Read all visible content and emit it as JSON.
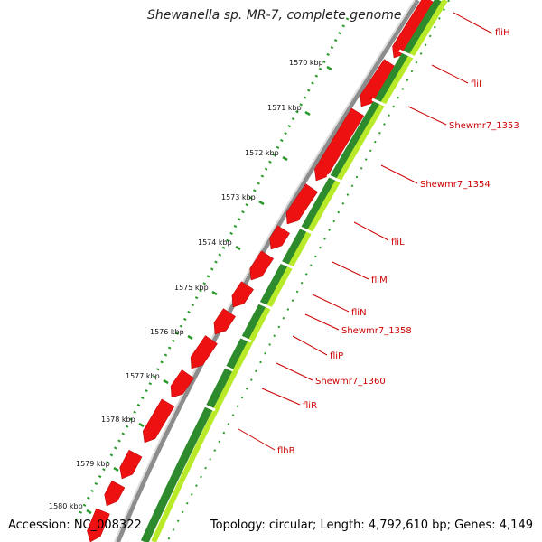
{
  "title": "Shewanella sp. MR-7, complete genome",
  "accession_text": "Accession: NC_008322",
  "summary_text": "Topology: circular; Length: 4,792,610 bp; Genes: 4,149",
  "colors": {
    "forward_cds": "#ee1111",
    "gene_outer": "#2d8a2d",
    "gene_inner": "#b9ea2a",
    "backbone": "#8c8c8c",
    "tick": "#2a9a2a",
    "label": "#cc0000"
  },
  "ruler_labels": [
    "1570 kbp",
    "1571 kbp",
    "1572 kbp",
    "1573 kbp",
    "1574 kbp",
    "1575 kbp",
    "1576 kbp",
    "1577 kbp",
    "1578 kbp",
    "1579 kbp",
    "1580 kbp"
  ],
  "gene_labels": [
    "fliH",
    "fliI",
    "Shewmr7_1353",
    "Shewmr7_1354",
    "fliL",
    "fliM",
    "fliN",
    "Shewmr7_1358",
    "fliP",
    "Shewmr7_1360",
    "fliR",
    "flhB"
  ]
}
